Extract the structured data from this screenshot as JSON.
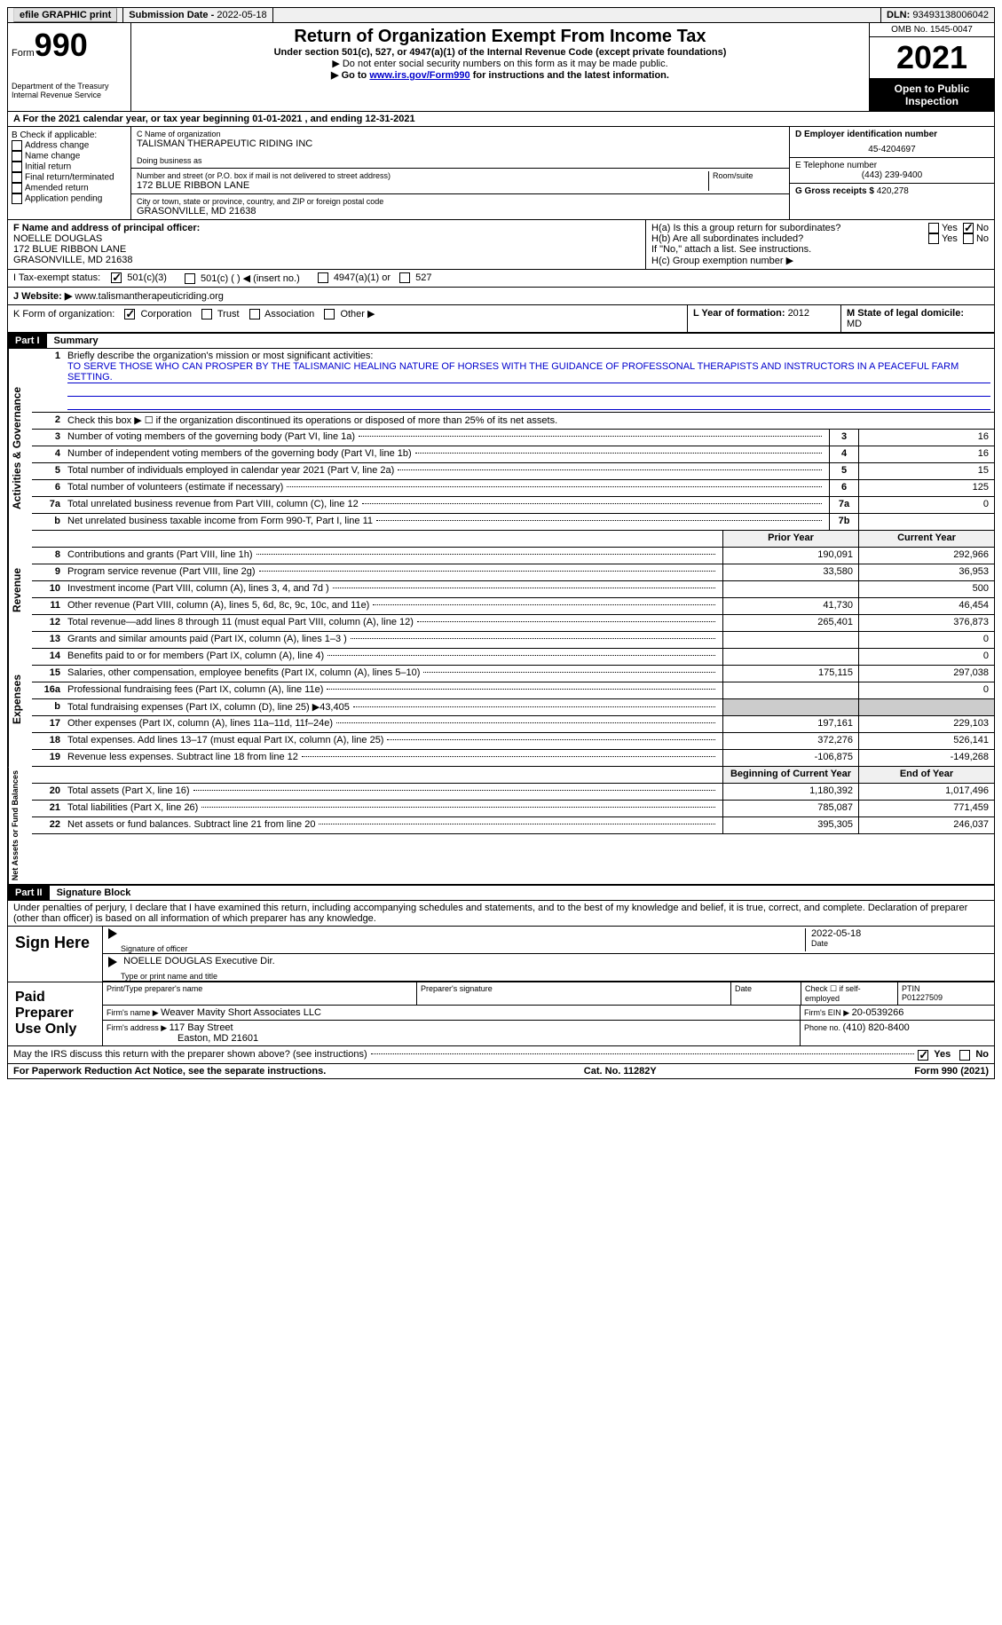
{
  "topbar": {
    "efile": "efile GRAPHIC print",
    "submission_label": "Submission Date - ",
    "submission_date": "2022-05-18",
    "dln_label": "DLN: ",
    "dln": "93493138006042"
  },
  "header": {
    "form_prefix": "Form",
    "form_num": "990",
    "dept": "Department of the Treasury",
    "irs": "Internal Revenue Service",
    "title": "Return of Organization Exempt From Income Tax",
    "subtitle": "Under section 501(c), 527, or 4947(a)(1) of the Internal Revenue Code (except private foundations)",
    "note1": "▶ Do not enter social security numbers on this form as it may be made public.",
    "note2_pre": "▶ Go to ",
    "note2_link": "www.irs.gov/Form990",
    "note2_post": " for instructions and the latest information.",
    "omb": "OMB No. 1545-0047",
    "year": "2021",
    "open": "Open to Public Inspection"
  },
  "row_a": "A For the 2021 calendar year, or tax year beginning 01-01-2021   , and ending 12-31-2021",
  "col_b": {
    "label": "B Check if applicable:",
    "items": [
      "Address change",
      "Name change",
      "Initial return",
      "Final return/terminated",
      "Amended return",
      "Application pending"
    ]
  },
  "col_c": {
    "name_label": "C Name of organization",
    "name": "TALISMAN THERAPEUTIC RIDING INC",
    "dba_label": "Doing business as",
    "addr_label": "Number and street (or P.O. box if mail is not delivered to street address)",
    "room_label": "Room/suite",
    "addr": "172 BLUE RIBBON LANE",
    "city_label": "City or town, state or province, country, and ZIP or foreign postal code",
    "city": "GRASONVILLE, MD  21638"
  },
  "col_d": {
    "ein_label": "D Employer identification number",
    "ein": "45-4204697",
    "phone_label": "E Telephone number",
    "phone": "(443) 239-9400",
    "gross_label": "G Gross receipts $ ",
    "gross": "420,278"
  },
  "row_f": {
    "label": "F Name and address of principal officer:",
    "name": "NOELLE DOUGLAS",
    "addr1": "172 BLUE RIBBON LANE",
    "addr2": "GRASONVILLE, MD  21638"
  },
  "row_h": {
    "ha": "H(a)  Is this a group return for subordinates?",
    "hb": "H(b)  Are all subordinates included?",
    "hb_note": "If \"No,\" attach a list. See instructions.",
    "hc": "H(c)  Group exemption number ▶",
    "yes": "Yes",
    "no": "No"
  },
  "row_i": {
    "label": "I   Tax-exempt status:",
    "o1": "501(c)(3)",
    "o2": "501(c) (  ) ◀ (insert no.)",
    "o3": "4947(a)(1) or",
    "o4": "527"
  },
  "row_j": {
    "label": "J   Website: ▶",
    "val": "www.talismantherapeuticriding.org"
  },
  "row_k": {
    "label": "K Form of organization:",
    "o1": "Corporation",
    "o2": "Trust",
    "o3": "Association",
    "o4": "Other ▶"
  },
  "row_l": {
    "label": "L Year of formation: ",
    "val": "2012"
  },
  "row_m": {
    "label": "M State of legal domicile: ",
    "val": "MD"
  },
  "part1": {
    "num": "Part I",
    "title": "Summary"
  },
  "mission": {
    "label": "Briefly describe the organization's mission or most significant activities:",
    "text": "TO SERVE THOSE WHO CAN PROSPER BY THE TALISMANIC HEALING NATURE OF HORSES WITH THE GUIDANCE OF PROFESSONAL THERAPISTS AND INSTRUCTORS IN A PEACEFUL FARM SETTING."
  },
  "line2": "Check this box ▶ ☐ if the organization discontinued its operations or disposed of more than 25% of its net assets.",
  "summary_rows": [
    {
      "n": "3",
      "d": "Number of voting members of the governing body (Part VI, line 1a)",
      "b": "3",
      "v": "16"
    },
    {
      "n": "4",
      "d": "Number of independent voting members of the governing body (Part VI, line 1b)",
      "b": "4",
      "v": "16"
    },
    {
      "n": "5",
      "d": "Total number of individuals employed in calendar year 2021 (Part V, line 2a)",
      "b": "5",
      "v": "15"
    },
    {
      "n": "6",
      "d": "Total number of volunteers (estimate if necessary)",
      "b": "6",
      "v": "125"
    },
    {
      "n": "7a",
      "d": "Total unrelated business revenue from Part VIII, column (C), line 12",
      "b": "7a",
      "v": "0"
    },
    {
      "n": "b",
      "d": "Net unrelated business taxable income from Form 990-T, Part I, line 11",
      "b": "7b",
      "v": ""
    }
  ],
  "col_headers": {
    "prior": "Prior Year",
    "curr": "Current Year"
  },
  "revenue_rows": [
    {
      "n": "8",
      "d": "Contributions and grants (Part VIII, line 1h)",
      "p": "190,091",
      "c": "292,966"
    },
    {
      "n": "9",
      "d": "Program service revenue (Part VIII, line 2g)",
      "p": "33,580",
      "c": "36,953"
    },
    {
      "n": "10",
      "d": "Investment income (Part VIII, column (A), lines 3, 4, and 7d )",
      "p": "",
      "c": "500"
    },
    {
      "n": "11",
      "d": "Other revenue (Part VIII, column (A), lines 5, 6d, 8c, 9c, 10c, and 11e)",
      "p": "41,730",
      "c": "46,454"
    },
    {
      "n": "12",
      "d": "Total revenue—add lines 8 through 11 (must equal Part VIII, column (A), line 12)",
      "p": "265,401",
      "c": "376,873"
    }
  ],
  "expense_rows": [
    {
      "n": "13",
      "d": "Grants and similar amounts paid (Part IX, column (A), lines 1–3 )",
      "p": "",
      "c": "0"
    },
    {
      "n": "14",
      "d": "Benefits paid to or for members (Part IX, column (A), line 4)",
      "p": "",
      "c": "0"
    },
    {
      "n": "15",
      "d": "Salaries, other compensation, employee benefits (Part IX, column (A), lines 5–10)",
      "p": "175,115",
      "c": "297,038"
    },
    {
      "n": "16a",
      "d": "Professional fundraising fees (Part IX, column (A), line 11e)",
      "p": "",
      "c": "0"
    },
    {
      "n": "b",
      "d": "Total fundraising expenses (Part IX, column (D), line 25) ▶43,405",
      "p": "shaded",
      "c": "shaded"
    },
    {
      "n": "17",
      "d": "Other expenses (Part IX, column (A), lines 11a–11d, 11f–24e)",
      "p": "197,161",
      "c": "229,103"
    },
    {
      "n": "18",
      "d": "Total expenses. Add lines 13–17 (must equal Part IX, column (A), line 25)",
      "p": "372,276",
      "c": "526,141"
    },
    {
      "n": "19",
      "d": "Revenue less expenses. Subtract line 18 from line 12",
      "p": "-106,875",
      "c": "-149,268"
    }
  ],
  "na_headers": {
    "prior": "Beginning of Current Year",
    "curr": "End of Year"
  },
  "na_rows": [
    {
      "n": "20",
      "d": "Total assets (Part X, line 16)",
      "p": "1,180,392",
      "c": "1,017,496"
    },
    {
      "n": "21",
      "d": "Total liabilities (Part X, line 26)",
      "p": "785,087",
      "c": "771,459"
    },
    {
      "n": "22",
      "d": "Net assets or fund balances. Subtract line 21 from line 20",
      "p": "395,305",
      "c": "246,037"
    }
  ],
  "part2": {
    "num": "Part II",
    "title": "Signature Block"
  },
  "perjury": "Under penalties of perjury, I declare that I have examined this return, including accompanying schedules and statements, and to the best of my knowledge and belief, it is true, correct, and complete. Declaration of preparer (other than officer) is based on all information of which preparer has any knowledge.",
  "sign": {
    "here": "Sign Here",
    "sig_label": "Signature of officer",
    "date_label": "Date",
    "date": "2022-05-18",
    "name": "NOELLE DOUGLAS  Executive Dir.",
    "name_label": "Type or print name and title"
  },
  "paid": {
    "title": "Paid Preparer Use Only",
    "h1": "Print/Type preparer's name",
    "h2": "Preparer's signature",
    "h3": "Date",
    "h4": "Check ☐ if self-employed",
    "h5_label": "PTIN",
    "h5": "P01227509",
    "firm_name_label": "Firm's name    ▶ ",
    "firm_name": "Weaver Mavity Short Associates LLC",
    "firm_ein_label": "Firm's EIN ▶ ",
    "firm_ein": "20-0539266",
    "firm_addr_label": "Firm's address ▶ ",
    "firm_addr1": "117 Bay Street",
    "firm_addr2": "Easton, MD  21601",
    "phone_label": "Phone no. ",
    "phone": "(410) 820-8400"
  },
  "discuss": "May the IRS discuss this return with the preparer shown above? (see instructions)",
  "footer": {
    "left": "For Paperwork Reduction Act Notice, see the separate instructions.",
    "mid": "Cat. No. 11282Y",
    "right": "Form 990 (2021)"
  },
  "sides": {
    "ag": "Activities & Governance",
    "rev": "Revenue",
    "exp": "Expenses",
    "na": "Net Assets or Fund Balances"
  }
}
